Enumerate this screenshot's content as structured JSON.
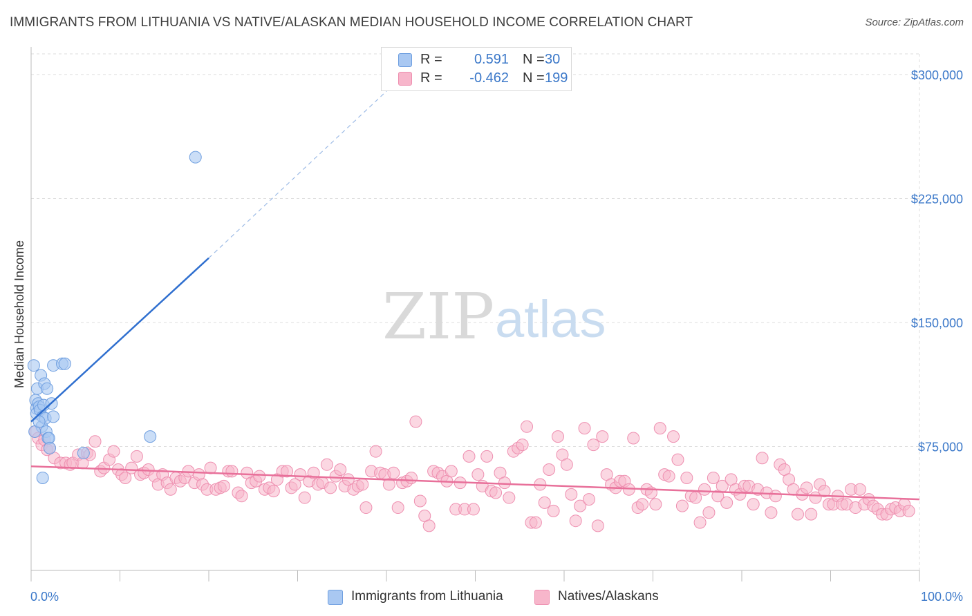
{
  "title": "IMMIGRANTS FROM LITHUANIA VS NATIVE/ALASKAN MEDIAN HOUSEHOLD INCOME CORRELATION CHART",
  "source": "Source: ZipAtlas.com",
  "watermark": {
    "zip": "ZIP",
    "atlas": "atlas"
  },
  "colors": {
    "blue_fill": "#a9c8f2",
    "blue_stroke": "#6f9fe0",
    "blue_line": "#2f6fcf",
    "pink_fill": "#f7b6cb",
    "pink_stroke": "#ee8fb0",
    "pink_line": "#e8709a",
    "value_text": "#3b78c9",
    "grid": "#dddddd"
  },
  "legend": {
    "rows": [
      {
        "r_label": "R =",
        "r_value": "0.591",
        "n_label": "N =",
        "n_value": "30",
        "color": "#a9c8f2",
        "border": "#6f9fe0"
      },
      {
        "r_label": "R =",
        "r_value": "-0.462",
        "n_label": "N =",
        "n_value": "199",
        "color": "#f7b6cb",
        "border": "#ee8fb0"
      }
    ]
  },
  "bottom_legend": [
    {
      "label": "Immigrants from Lithuania",
      "color": "#a9c8f2",
      "border": "#6f9fe0"
    },
    {
      "label": "Natives/Alaskans",
      "color": "#f7b6cb",
      "border": "#ee8fb0"
    }
  ],
  "chart_data": {
    "type": "scatter",
    "title": "IMMIGRANTS FROM LITHUANIA VS NATIVE/ALASKAN MEDIAN HOUSEHOLD INCOME CORRELATION CHART",
    "xlabel": "",
    "ylabel": "Median Household Income",
    "xlim": [
      0,
      100
    ],
    "ylim": [
      0,
      312500
    ],
    "x_tick_labels": [
      "0.0%",
      "100.0%"
    ],
    "y_ticks": [
      75000,
      150000,
      225000,
      300000
    ],
    "y_tick_labels": [
      "$75,000",
      "$150,000",
      "$225,000",
      "$300,000"
    ],
    "grid": true,
    "series": [
      {
        "name": "Immigrants from Lithuania",
        "points": [
          [
            0.3,
            124000
          ],
          [
            0.5,
            103000
          ],
          [
            0.6,
            98000
          ],
          [
            0.6,
            95000
          ],
          [
            0.7,
            110000
          ],
          [
            0.8,
            101000
          ],
          [
            0.9,
            99000
          ],
          [
            1.0,
            97000
          ],
          [
            1.1,
            118000
          ],
          [
            1.2,
            87000
          ],
          [
            1.3,
            93000
          ],
          [
            1.4,
            100000
          ],
          [
            1.5,
            113000
          ],
          [
            1.6,
            92000
          ],
          [
            1.7,
            84000
          ],
          [
            1.8,
            110000
          ],
          [
            1.9,
            80000
          ],
          [
            2.0,
            80000
          ],
          [
            2.1,
            74000
          ],
          [
            2.3,
            101000
          ],
          [
            2.5,
            93000
          ],
          [
            2.5,
            124000
          ],
          [
            3.5,
            125000
          ],
          [
            3.8,
            125000
          ],
          [
            5.9,
            71000
          ],
          [
            13.4,
            81000
          ],
          [
            18.5,
            250000
          ],
          [
            1.3,
            56000
          ],
          [
            0.4,
            84000
          ],
          [
            0.9,
            90000
          ]
        ],
        "trend": {
          "x0": 0.0,
          "y0": 90000,
          "x1": 20.0,
          "y1": 189000,
          "dashed_to_x": 42.0,
          "dashed_to_y": 300000
        }
      },
      {
        "name": "Natives/Alaskans",
        "points": [
          [
            0.5,
            84000
          ],
          [
            0.8,
            80000
          ],
          [
            1.2,
            76000
          ],
          [
            1.5,
            79000
          ],
          [
            1.8,
            73000
          ],
          [
            2.1,
            74000
          ],
          [
            2.6,
            68000
          ],
          [
            3.3,
            65000
          ],
          [
            3.9,
            65000
          ],
          [
            4.4,
            64000
          ],
          [
            4.7,
            65000
          ],
          [
            5.3,
            70000
          ],
          [
            5.8,
            65000
          ],
          [
            6.3,
            71000
          ],
          [
            6.6,
            70000
          ],
          [
            7.2,
            78000
          ],
          [
            7.8,
            60000
          ],
          [
            8.2,
            62000
          ],
          [
            8.8,
            67000
          ],
          [
            9.3,
            72000
          ],
          [
            9.8,
            61000
          ],
          [
            10.2,
            58000
          ],
          [
            10.6,
            56000
          ],
          [
            11.3,
            62000
          ],
          [
            11.9,
            69000
          ],
          [
            12.3,
            58000
          ],
          [
            12.7,
            59000
          ],
          [
            13.2,
            61000
          ],
          [
            13.9,
            57000
          ],
          [
            14.3,
            52000
          ],
          [
            14.8,
            58000
          ],
          [
            15.3,
            53000
          ],
          [
            15.7,
            49000
          ],
          [
            16.3,
            56000
          ],
          [
            16.8,
            54000
          ],
          [
            17.3,
            56000
          ],
          [
            17.7,
            60000
          ],
          [
            18.4,
            53000
          ],
          [
            18.9,
            58000
          ],
          [
            19.3,
            52000
          ],
          [
            19.8,
            49000
          ],
          [
            20.2,
            62000
          ],
          [
            20.8,
            49000
          ],
          [
            21.3,
            50000
          ],
          [
            21.7,
            51000
          ],
          [
            22.2,
            60000
          ],
          [
            22.6,
            60000
          ],
          [
            23.3,
            47000
          ],
          [
            23.7,
            45000
          ],
          [
            24.3,
            59000
          ],
          [
            24.8,
            53000
          ],
          [
            25.3,
            54000
          ],
          [
            25.7,
            57000
          ],
          [
            26.3,
            49000
          ],
          [
            26.8,
            50000
          ],
          [
            27.3,
            48000
          ],
          [
            27.7,
            55000
          ],
          [
            28.3,
            60000
          ],
          [
            28.8,
            60000
          ],
          [
            29.3,
            50000
          ],
          [
            29.7,
            52000
          ],
          [
            30.3,
            58000
          ],
          [
            30.8,
            44000
          ],
          [
            31.3,
            54000
          ],
          [
            31.8,
            59000
          ],
          [
            32.3,
            52000
          ],
          [
            32.8,
            53000
          ],
          [
            33.3,
            64000
          ],
          [
            33.7,
            50000
          ],
          [
            34.3,
            57000
          ],
          [
            34.8,
            61000
          ],
          [
            35.3,
            51000
          ],
          [
            35.7,
            55000
          ],
          [
            36.3,
            49000
          ],
          [
            36.8,
            51000
          ],
          [
            37.3,
            52000
          ],
          [
            37.7,
            38000
          ],
          [
            38.3,
            60000
          ],
          [
            38.8,
            72000
          ],
          [
            39.3,
            59000
          ],
          [
            39.8,
            58000
          ],
          [
            40.3,
            52000
          ],
          [
            40.8,
            59000
          ],
          [
            41.3,
            38000
          ],
          [
            41.8,
            53000
          ],
          [
            42.3,
            54000
          ],
          [
            42.8,
            56000
          ],
          [
            43.3,
            90000
          ],
          [
            43.8,
            42000
          ],
          [
            44.3,
            33000
          ],
          [
            44.8,
            27000
          ],
          [
            45.3,
            60000
          ],
          [
            45.8,
            59000
          ],
          [
            46.3,
            57000
          ],
          [
            46.8,
            54000
          ],
          [
            47.3,
            60000
          ],
          [
            47.8,
            37000
          ],
          [
            48.3,
            53000
          ],
          [
            48.8,
            37000
          ],
          [
            49.3,
            69000
          ],
          [
            49.8,
            37000
          ],
          [
            50.3,
            58000
          ],
          [
            50.8,
            51000
          ],
          [
            51.3,
            69000
          ],
          [
            51.8,
            48000
          ],
          [
            52.3,
            47000
          ],
          [
            52.8,
            59000
          ],
          [
            53.3,
            53000
          ],
          [
            53.8,
            44000
          ],
          [
            54.3,
            72000
          ],
          [
            54.8,
            74000
          ],
          [
            55.3,
            76000
          ],
          [
            55.8,
            87000
          ],
          [
            56.3,
            29000
          ],
          [
            56.8,
            29000
          ],
          [
            57.3,
            52000
          ],
          [
            57.8,
            41000
          ],
          [
            58.3,
            61000
          ],
          [
            58.8,
            36000
          ],
          [
            59.3,
            81000
          ],
          [
            59.8,
            70000
          ],
          [
            60.3,
            64000
          ],
          [
            60.8,
            46000
          ],
          [
            61.3,
            30000
          ],
          [
            61.8,
            39000
          ],
          [
            62.3,
            86000
          ],
          [
            62.8,
            43000
          ],
          [
            63.3,
            76000
          ],
          [
            63.8,
            27000
          ],
          [
            64.3,
            81000
          ],
          [
            64.8,
            58000
          ],
          [
            65.3,
            52000
          ],
          [
            65.8,
            50000
          ],
          [
            66.3,
            54000
          ],
          [
            66.8,
            54000
          ],
          [
            67.3,
            49000
          ],
          [
            67.8,
            80000
          ],
          [
            68.3,
            38000
          ],
          [
            68.8,
            40000
          ],
          [
            69.3,
            49000
          ],
          [
            69.8,
            47000
          ],
          [
            70.3,
            40000
          ],
          [
            70.8,
            86000
          ],
          [
            71.3,
            58000
          ],
          [
            71.8,
            57000
          ],
          [
            72.3,
            81000
          ],
          [
            72.8,
            67000
          ],
          [
            73.3,
            39000
          ],
          [
            73.8,
            56000
          ],
          [
            74.3,
            45000
          ],
          [
            74.8,
            44000
          ],
          [
            75.3,
            29000
          ],
          [
            75.8,
            49000
          ],
          [
            76.3,
            35000
          ],
          [
            76.8,
            56000
          ],
          [
            77.3,
            45000
          ],
          [
            77.8,
            51000
          ],
          [
            78.3,
            41000
          ],
          [
            78.8,
            55000
          ],
          [
            79.3,
            49000
          ],
          [
            79.8,
            46000
          ],
          [
            80.3,
            51000
          ],
          [
            80.8,
            51000
          ],
          [
            81.3,
            40000
          ],
          [
            81.8,
            49000
          ],
          [
            82.3,
            68000
          ],
          [
            82.8,
            47000
          ],
          [
            83.3,
            35000
          ],
          [
            83.8,
            45000
          ],
          [
            84.3,
            64000
          ],
          [
            84.8,
            61000
          ],
          [
            85.3,
            55000
          ],
          [
            85.8,
            49000
          ],
          [
            86.3,
            34000
          ],
          [
            86.8,
            46000
          ],
          [
            87.3,
            50000
          ],
          [
            87.8,
            34000
          ],
          [
            88.3,
            44000
          ],
          [
            88.8,
            52000
          ],
          [
            89.3,
            48000
          ],
          [
            89.8,
            40000
          ],
          [
            90.3,
            40000
          ],
          [
            90.8,
            45000
          ],
          [
            91.3,
            40000
          ],
          [
            91.8,
            40000
          ],
          [
            92.3,
            49000
          ],
          [
            92.8,
            38000
          ],
          [
            93.3,
            49000
          ],
          [
            93.8,
            40000
          ],
          [
            94.3,
            43000
          ],
          [
            94.8,
            39000
          ],
          [
            95.3,
            37000
          ],
          [
            95.8,
            34000
          ],
          [
            96.3,
            34000
          ],
          [
            96.8,
            37000
          ],
          [
            97.3,
            38000
          ],
          [
            97.8,
            36000
          ],
          [
            98.3,
            40000
          ],
          [
            98.8,
            36000
          ]
        ],
        "trend": {
          "x0": 0.0,
          "y0": 63000,
          "x1": 100.0,
          "y1": 43000
        }
      }
    ]
  }
}
